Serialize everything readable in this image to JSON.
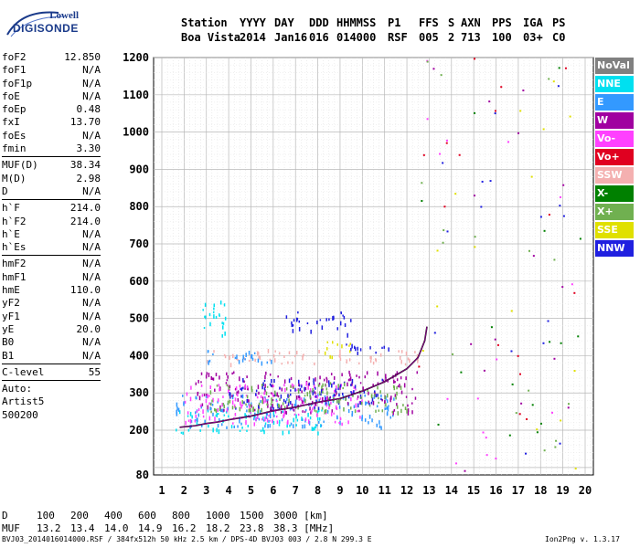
{
  "logo": {
    "line1": "Lowell",
    "line2": "DIGISONDE"
  },
  "header": {
    "columns": [
      {
        "label": "Station",
        "value": "Boa Vista",
        "x": 198
      },
      {
        "label": "YYYY",
        "value": "2014",
        "x": 262
      },
      {
        "label": "DAY",
        "value": "Jan16",
        "x": 300
      },
      {
        "label": "DDD",
        "value": "016",
        "x": 338
      },
      {
        "label": "HHMMSS",
        "value": "014000",
        "x": 368
      },
      {
        "label": "P1",
        "value": "RSF",
        "x": 424
      },
      {
        "label": "FFS",
        "value": "005",
        "x": 458
      },
      {
        "label": "S",
        "value": "2",
        "x": 490
      },
      {
        "label": "AXN",
        "value": "713",
        "x": 504
      },
      {
        "label": "PPS",
        "value": "100",
        "x": 538
      },
      {
        "label": "IGA",
        "value": "03+",
        "x": 572
      },
      {
        "label": "PS",
        "value": "C0",
        "x": 604
      }
    ]
  },
  "params": [
    {
      "label": "foF2",
      "value": "12.850"
    },
    {
      "label": "foF1",
      "value": "N/A"
    },
    {
      "label": "foF1p",
      "value": "N/A"
    },
    {
      "label": "foE",
      "value": "N/A"
    },
    {
      "label": "foEp",
      "value": "0.48"
    },
    {
      "label": "fxI",
      "value": "13.70"
    },
    {
      "label": "foEs",
      "value": "N/A"
    },
    {
      "label": "fmin",
      "value": "3.30"
    },
    {
      "sep": true
    },
    {
      "label": "MUF(D)",
      "value": "38.34"
    },
    {
      "label": "M(D)",
      "value": "2.98"
    },
    {
      "label": "D",
      "value": "N/A"
    },
    {
      "sep": true
    },
    {
      "label": "h`F",
      "value": "214.0"
    },
    {
      "label": "h`F2",
      "value": "214.0"
    },
    {
      "label": "h`E",
      "value": "N/A"
    },
    {
      "label": "h`Es",
      "value": "N/A"
    },
    {
      "sep": true
    },
    {
      "label": "hmF2",
      "value": "N/A"
    },
    {
      "label": "hmF1",
      "value": "N/A"
    },
    {
      "label": "hmE",
      "value": "110.0"
    },
    {
      "label": "yF2",
      "value": "N/A"
    },
    {
      "label": "yF1",
      "value": "N/A"
    },
    {
      "label": "yE",
      "value": "20.0"
    },
    {
      "label": "B0",
      "value": "N/A"
    },
    {
      "label": "B1",
      "value": "N/A"
    },
    {
      "sep": true
    },
    {
      "label": "C-level",
      "value": "55"
    },
    {
      "sep": true
    },
    {
      "text": "Auto:"
    },
    {
      "text": "Artist5"
    },
    {
      "text": "500200"
    }
  ],
  "legend": [
    {
      "label": "NoVal",
      "color": "#808080"
    },
    {
      "label": "NNE",
      "color": "#00e0f0"
    },
    {
      "label": "E",
      "color": "#3399ff"
    },
    {
      "label": "W",
      "color": "#a000a0"
    },
    {
      "label": "Vo-",
      "color": "#ff40ff"
    },
    {
      "label": "Vo+",
      "color": "#e00020"
    },
    {
      "label": "SSW",
      "color": "#f4b0b0"
    },
    {
      "label": "X-",
      "color": "#008000"
    },
    {
      "label": "X+",
      "color": "#70b050"
    },
    {
      "label": "SSE",
      "color": "#e0e000"
    },
    {
      "label": "NNW",
      "color": "#2020e0"
    }
  ],
  "chart_data": {
    "type": "scatter",
    "title": "",
    "xlabel": "",
    "ylabel": "",
    "xlim": [
      1,
      20
    ],
    "ylim": [
      80,
      1200
    ],
    "x_ticks": [
      1,
      2,
      3,
      4,
      5,
      6,
      7,
      8,
      9,
      10,
      11,
      12,
      13,
      14,
      15,
      16,
      17,
      18,
      19,
      20
    ],
    "y_ticks": [
      80,
      200,
      300,
      400,
      500,
      600,
      700,
      800,
      900,
      1000,
      1100,
      1200
    ],
    "grid": true,
    "scaled_trace": [
      {
        "x": 1.8,
        "y": 208
      },
      {
        "x": 2.5,
        "y": 212
      },
      {
        "x": 3,
        "y": 218
      },
      {
        "x": 3.5,
        "y": 222
      },
      {
        "x": 4,
        "y": 228
      },
      {
        "x": 5,
        "y": 238
      },
      {
        "x": 6,
        "y": 252
      },
      {
        "x": 7,
        "y": 262
      },
      {
        "x": 8,
        "y": 275
      },
      {
        "x": 9,
        "y": 285
      },
      {
        "x": 10,
        "y": 305
      },
      {
        "x": 11,
        "y": 330
      },
      {
        "x": 12,
        "y": 365
      },
      {
        "x": 12.5,
        "y": 395
      },
      {
        "x": 12.8,
        "y": 440
      },
      {
        "x": 12.9,
        "y": 478
      }
    ],
    "echo_bands": [
      {
        "color": "#00e0f0",
        "x0": 1.6,
        "x1": 8.5,
        "y0": 195,
        "y1": 260
      },
      {
        "color": "#3399ff",
        "x0": 1.6,
        "x1": 11.5,
        "y0": 210,
        "y1": 300
      },
      {
        "color": "#a000a0",
        "x0": 2.5,
        "x1": 12.5,
        "y0": 250,
        "y1": 360
      },
      {
        "color": "#ff40ff",
        "x0": 2.0,
        "x1": 10.0,
        "y0": 220,
        "y1": 330
      },
      {
        "color": "#2020e0",
        "x0": 4.0,
        "x1": 11.0,
        "y0": 260,
        "y1": 340
      },
      {
        "color": "#70b050",
        "x0": 3.0,
        "x1": 12.0,
        "y0": 250,
        "y1": 330
      },
      {
        "color": "#f4b0b0",
        "x0": 3.0,
        "x1": 12.5,
        "y0": 380,
        "y1": 420
      },
      {
        "color": "#e0e000",
        "x0": 8.0,
        "x1": 9.5,
        "y0": 395,
        "y1": 440
      },
      {
        "color": "#2020e0",
        "x0": 9.0,
        "x1": 11.5,
        "y0": 410,
        "y1": 440
      },
      {
        "color": "#3399ff",
        "x0": 2.9,
        "x1": 6.0,
        "y0": 380,
        "y1": 420
      },
      {
        "color": "#00e0f0",
        "x0": 2.8,
        "x1": 4.0,
        "y0": 450,
        "y1": 560
      },
      {
        "color": "#2020e0",
        "x0": 6.5,
        "x1": 9.5,
        "y0": 460,
        "y1": 520
      }
    ],
    "sporadic": {
      "x0": 12.5,
      "x1": 19.8,
      "y0": 80,
      "y1": 1200,
      "count": 110
    }
  },
  "footer": {
    "d_label": "D",
    "d_values": [
      "100",
      "200",
      "400",
      "600",
      "800",
      "1000",
      "1500",
      "3000 [km]"
    ],
    "muf_label": "MUF",
    "muf_values": [
      "13.2",
      "13.4",
      "14.0",
      "14.9",
      "16.2",
      "18.2",
      "23.8",
      "38.3 [MHz]"
    ],
    "file_info": "BVJ03_2014016014000.RSF / 384fx512h 50 kHz 2.5 km / DPS-4D BVJ03 003 / 2.8 N 299.3 E",
    "version": "Ion2Png v. 1.3.17"
  }
}
